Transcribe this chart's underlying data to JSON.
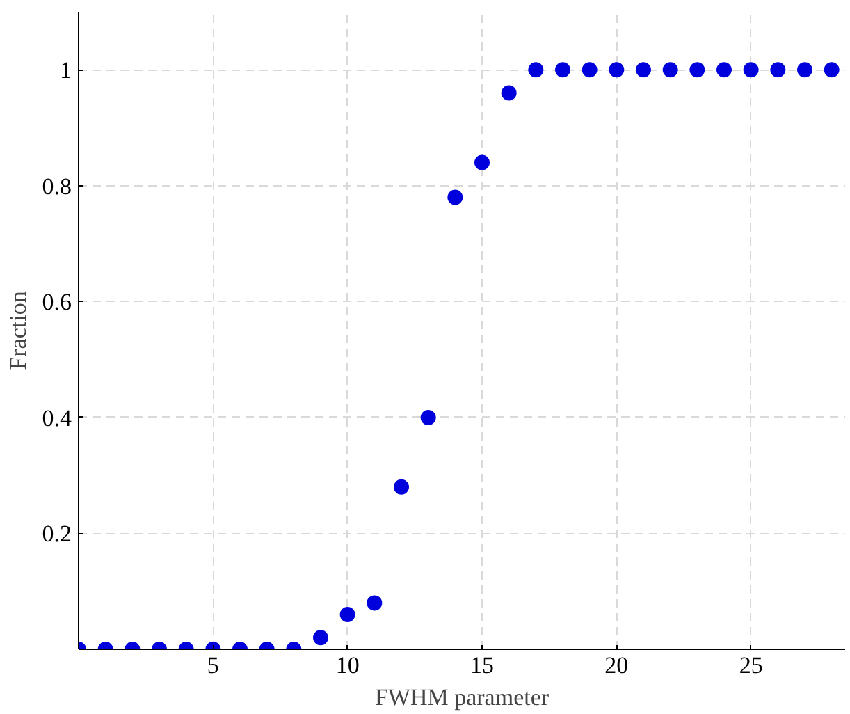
{
  "chart_data": {
    "type": "scatter",
    "xlabel": "FWHM parameter",
    "ylabel": "Fraction",
    "x": [
      0,
      1,
      2,
      3,
      4,
      5,
      6,
      7,
      8,
      9,
      10,
      11,
      12,
      13,
      14,
      15,
      16,
      17,
      18,
      19,
      20,
      21,
      22,
      23,
      24,
      25,
      26,
      27,
      28
    ],
    "series": [
      {
        "color": "#0000dd",
        "values": [
          0,
          0,
          0,
          0,
          0,
          0,
          0,
          0,
          0,
          0.02,
          0.06,
          0.08,
          0.28,
          0.4,
          0.78,
          0.84,
          0.96,
          1,
          1,
          1,
          1,
          1,
          1,
          1,
          1,
          1,
          1,
          1,
          1
        ]
      }
    ],
    "xlim": [
      0,
      28.5
    ],
    "ylim": [
      0,
      1.1
    ],
    "xticks": [
      5,
      10,
      15,
      20,
      25
    ],
    "yticks": [
      0.2,
      0.4,
      0.6,
      0.8,
      1
    ],
    "grid": true,
    "marker": "circle"
  }
}
